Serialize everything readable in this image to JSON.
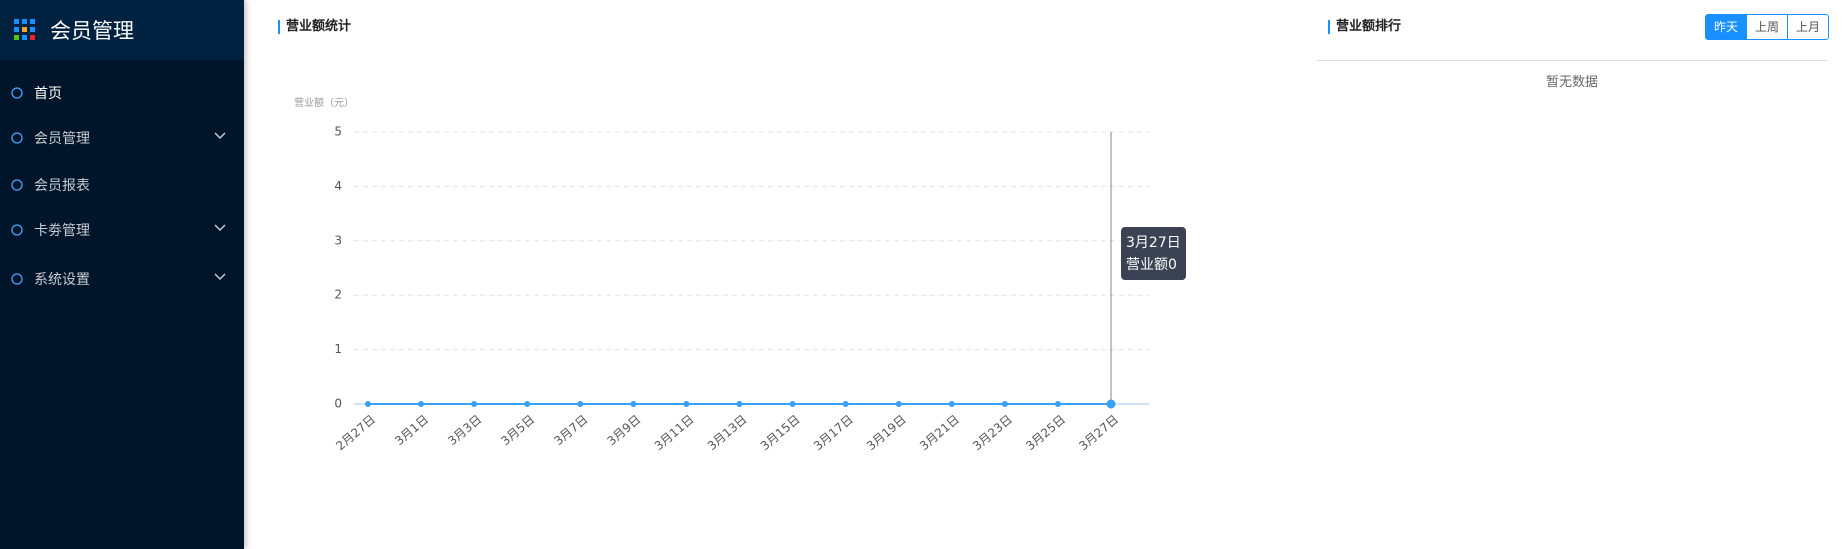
{
  "sidebar": {
    "title": "会员管理",
    "menu": [
      {
        "label": "首页",
        "active": true,
        "expandable": false
      },
      {
        "label": "会员管理",
        "active": false,
        "expandable": true
      },
      {
        "label": "会员报表",
        "active": false,
        "expandable": false
      },
      {
        "label": "卡劵管理",
        "active": false,
        "expandable": true
      },
      {
        "label": "系统设置",
        "active": false,
        "expandable": true
      }
    ]
  },
  "chart_data": {
    "type": "line",
    "title": "营业额统计",
    "y_label": "营业额（元）",
    "x": [
      "2月27日",
      "3月1日",
      "3月3日",
      "3月5日",
      "3月7日",
      "3月9日",
      "3月11日",
      "3月13日",
      "3月15日",
      "3月17日",
      "3月19日",
      "3月21日",
      "3月23日",
      "3月25日",
      "3月27日"
    ],
    "series": [
      {
        "name": "营业额",
        "color": "#3aa0f3",
        "values": [
          0,
          0,
          0,
          0,
          0,
          0,
          0,
          0,
          0,
          0,
          0,
          0,
          0,
          0,
          0
        ]
      }
    ],
    "ylim": [
      0,
      5
    ],
    "yticks": [
      0,
      1,
      2,
      3,
      4,
      5
    ],
    "grid": true,
    "tooltip": {
      "index": 14,
      "title": "3月27日",
      "text": "营业额0"
    }
  },
  "ranking": {
    "title": "营业额排行",
    "tabs": [
      "昨天",
      "上周",
      "上月"
    ],
    "active_tab": 0,
    "empty_text": "暂无数据"
  }
}
